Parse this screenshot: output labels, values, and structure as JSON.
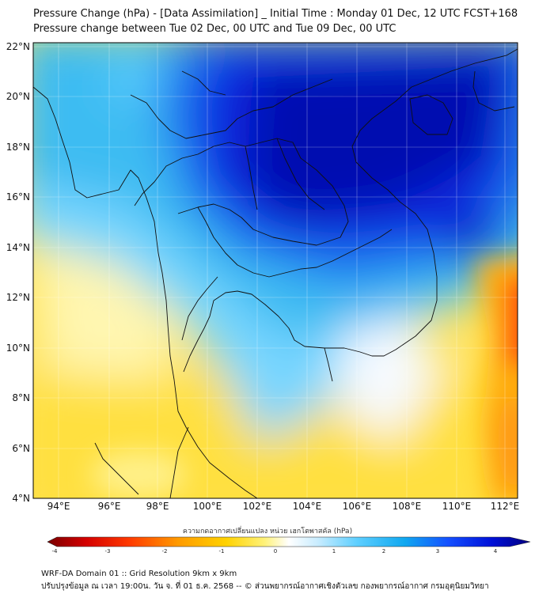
{
  "title_line1": "Pressure Change (hPa) - [Data Assimilation] _ Initial Time : Monday 01 Dec, 12 UTC FCST+168",
  "title_line2": "Pressure change between Tue 02 Dec, 00 UTC and Tue 09 Dec, 00 UTC",
  "latitude_labels": [
    "22°N",
    "20°N",
    "18°N",
    "16°N",
    "14°N",
    "12°N",
    "10°N",
    "8°N",
    "6°N",
    "4°N"
  ],
  "longitude_labels": [
    "94°E",
    "96°E",
    "98°E",
    "100°E",
    "102°E",
    "104°E",
    "106°E",
    "108°E",
    "110°E",
    "112°E"
  ],
  "colorbar": {
    "label": "ความกดอากาศเปลี่ยนแปลง หน่วย เฮกโตพาสคัล (hPa)",
    "ticks": [
      "-4",
      "-3",
      "-2",
      "-1",
      "0",
      "1",
      "2",
      "3",
      "4"
    ],
    "range": [
      -4,
      4
    ],
    "colors": [
      "#7a0000",
      "#d40000",
      "#ff3a00",
      "#ff9a00",
      "#ffd200",
      "#fff27a",
      "#ffffff",
      "#c8ecff",
      "#5fcfff",
      "#10a8f0",
      "#1450ff",
      "#0010d8",
      "#000080"
    ]
  },
  "footer_line1": "WRF-DA Domain 01 :: Grid Resolution 9km x 9km",
  "footer_line2": "ปรับปรุงข้อมูล ณ เวลา 19:00น. วัน จ. ที่ 01 ธ.ค. 2568 -- © ส่วนพยากรณ์อากาศเชิงตัวเลข กองพยากรณ์อากาศ กรมอุตุนิยมวิทยา"
}
